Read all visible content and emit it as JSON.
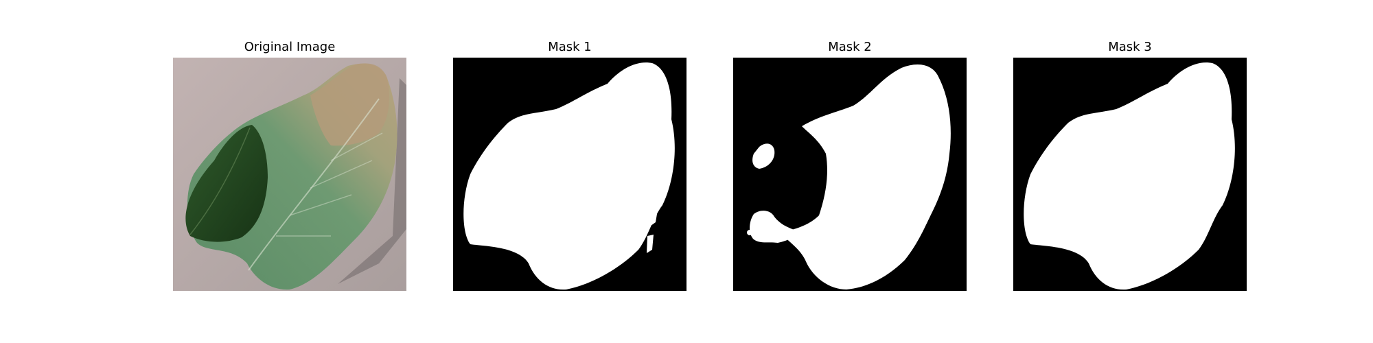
{
  "figure": {
    "panels": [
      {
        "title": "Original Image",
        "kind": "photo",
        "subject": "leaf-photo"
      },
      {
        "title": "Mask 1",
        "kind": "mask",
        "foreground_color": "#ffffff",
        "background_color": "#000000"
      },
      {
        "title": "Mask 2",
        "kind": "mask",
        "foreground_color": "#ffffff",
        "background_color": "#000000"
      },
      {
        "title": "Mask 3",
        "kind": "mask",
        "foreground_color": "#ffffff",
        "background_color": "#000000"
      }
    ],
    "colors": {
      "photo_background": "#b7aaa9",
      "leaf_green": "#5a8a62",
      "leaf_dark": "#1f3d1c",
      "leaf_dry": "#b49b7a"
    }
  }
}
